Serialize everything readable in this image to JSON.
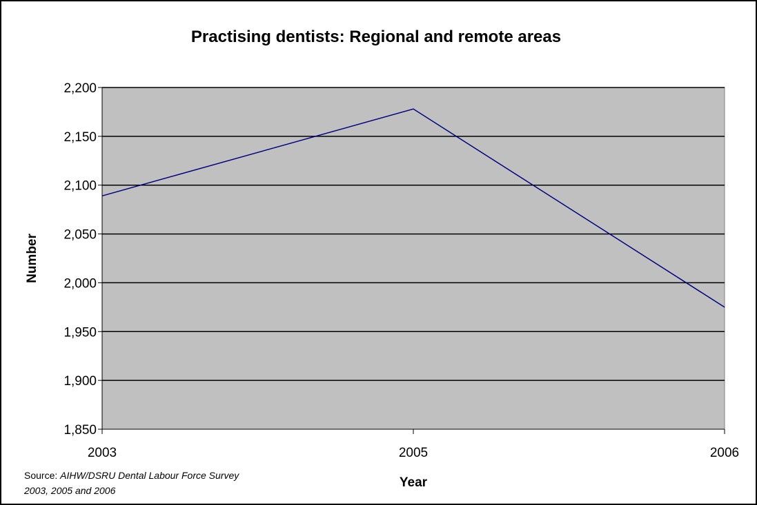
{
  "chart_data": {
    "type": "line",
    "title": "Practising dentists: Regional and remote areas",
    "xlabel": "Year",
    "ylabel": "Number",
    "categories": [
      "2003",
      "2005",
      "2006"
    ],
    "series": [
      {
        "values": [
          2089,
          2178,
          1975
        ],
        "color": "#000080"
      }
    ],
    "ylim": [
      1850,
      2200
    ],
    "yticks": [
      1850,
      1900,
      1950,
      2000,
      2050,
      2100,
      2150,
      2200
    ],
    "ytick_labels": [
      "1,850",
      "1,900",
      "1,950",
      "2,000",
      "2,050",
      "2,100",
      "2,150",
      "2,200"
    ],
    "grid": true,
    "legend": "none",
    "plot_background": "#c0c0c0"
  },
  "source": {
    "prefix": "Source: ",
    "line1": "AIHW/DSRU Dental Labour Force Survey",
    "line2": "2003, 2005 and 2006"
  }
}
